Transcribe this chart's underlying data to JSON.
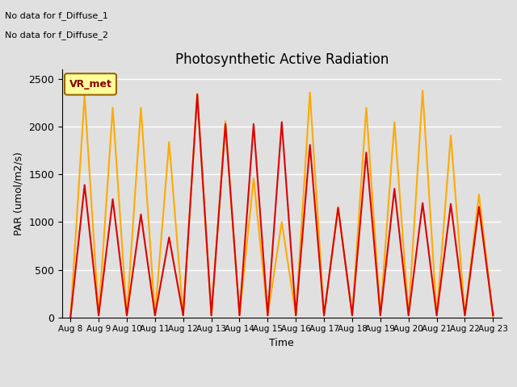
{
  "title": "Photosynthetic Active Radiation",
  "xlabel": "Time",
  "ylabel": "PAR (umol/m2/s)",
  "annotation_lines": [
    "No data for f_Diffuse_1",
    "No data for f_Diffuse_2"
  ],
  "legend_label": "VR_met",
  "legend_box_color": "#ffff99",
  "legend_box_edge": "#996600",
  "ylim": [
    0,
    2600
  ],
  "background_color": "#e0e0e0",
  "axes_bg_color": "#e0e0e0",
  "grid_color": "white",
  "par_in_color": "#dd0000",
  "par_out_color": "#ffaa00",
  "x_ticks": [
    0,
    1,
    2,
    3,
    4,
    5,
    6,
    7,
    8,
    9,
    10,
    11,
    12,
    13,
    14,
    15
  ],
  "x_tick_labels": [
    "Aug 8",
    "Aug 9",
    "Aug 10",
    "Aug 11",
    "Aug 12",
    "Aug 13",
    "Aug 14",
    "Aug 15",
    "Aug 16",
    "Aug 17",
    "Aug 18",
    "Aug 19",
    "Aug 20",
    "Aug 21",
    "Aug 22",
    "Aug 23"
  ],
  "par_in_x": [
    0,
    0.5,
    1,
    1,
    1.5,
    2,
    2,
    2.5,
    3,
    3,
    3.5,
    4,
    4,
    4.5,
    5,
    5,
    5.5,
    6,
    6,
    6.5,
    7,
    7,
    7.5,
    8,
    8,
    8.5,
    9,
    9,
    9.5,
    10,
    10,
    10.5,
    11,
    11,
    11.5,
    12,
    12,
    12.5,
    13,
    13,
    13.5,
    14,
    14,
    14.5,
    15,
    15
  ],
  "par_in_y": [
    0,
    1390,
    20,
    20,
    1240,
    20,
    20,
    1080,
    20,
    20,
    840,
    20,
    20,
    2340,
    20,
    20,
    2030,
    20,
    20,
    2030,
    20,
    20,
    2050,
    20,
    20,
    1810,
    20,
    20,
    1150,
    20,
    20,
    1730,
    20,
    20,
    1350,
    20,
    20,
    1200,
    20,
    20,
    1190,
    20,
    20,
    1160,
    20,
    50
  ],
  "par_out_x": [
    0,
    0.5,
    1,
    1,
    1.5,
    2,
    2,
    2.5,
    3,
    3,
    3.5,
    4,
    4,
    4.5,
    5,
    5,
    5.5,
    6,
    6,
    6.5,
    7,
    7,
    7.5,
    8,
    8,
    8.5,
    9,
    9,
    9.5,
    10,
    10,
    10.5,
    11,
    11,
    11.5,
    12,
    12,
    12.5,
    13,
    13,
    13.5,
    14,
    14,
    14.5,
    15,
    15
  ],
  "par_out_y": [
    0,
    2330,
    20,
    20,
    2200,
    20,
    20,
    2200,
    20,
    20,
    1840,
    20,
    20,
    2350,
    20,
    20,
    2060,
    20,
    20,
    1460,
    20,
    20,
    1000,
    20,
    20,
    2360,
    20,
    20,
    1160,
    20,
    20,
    2200,
    20,
    20,
    2050,
    20,
    20,
    2380,
    20,
    20,
    1910,
    20,
    20,
    1290,
    20,
    0
  ]
}
